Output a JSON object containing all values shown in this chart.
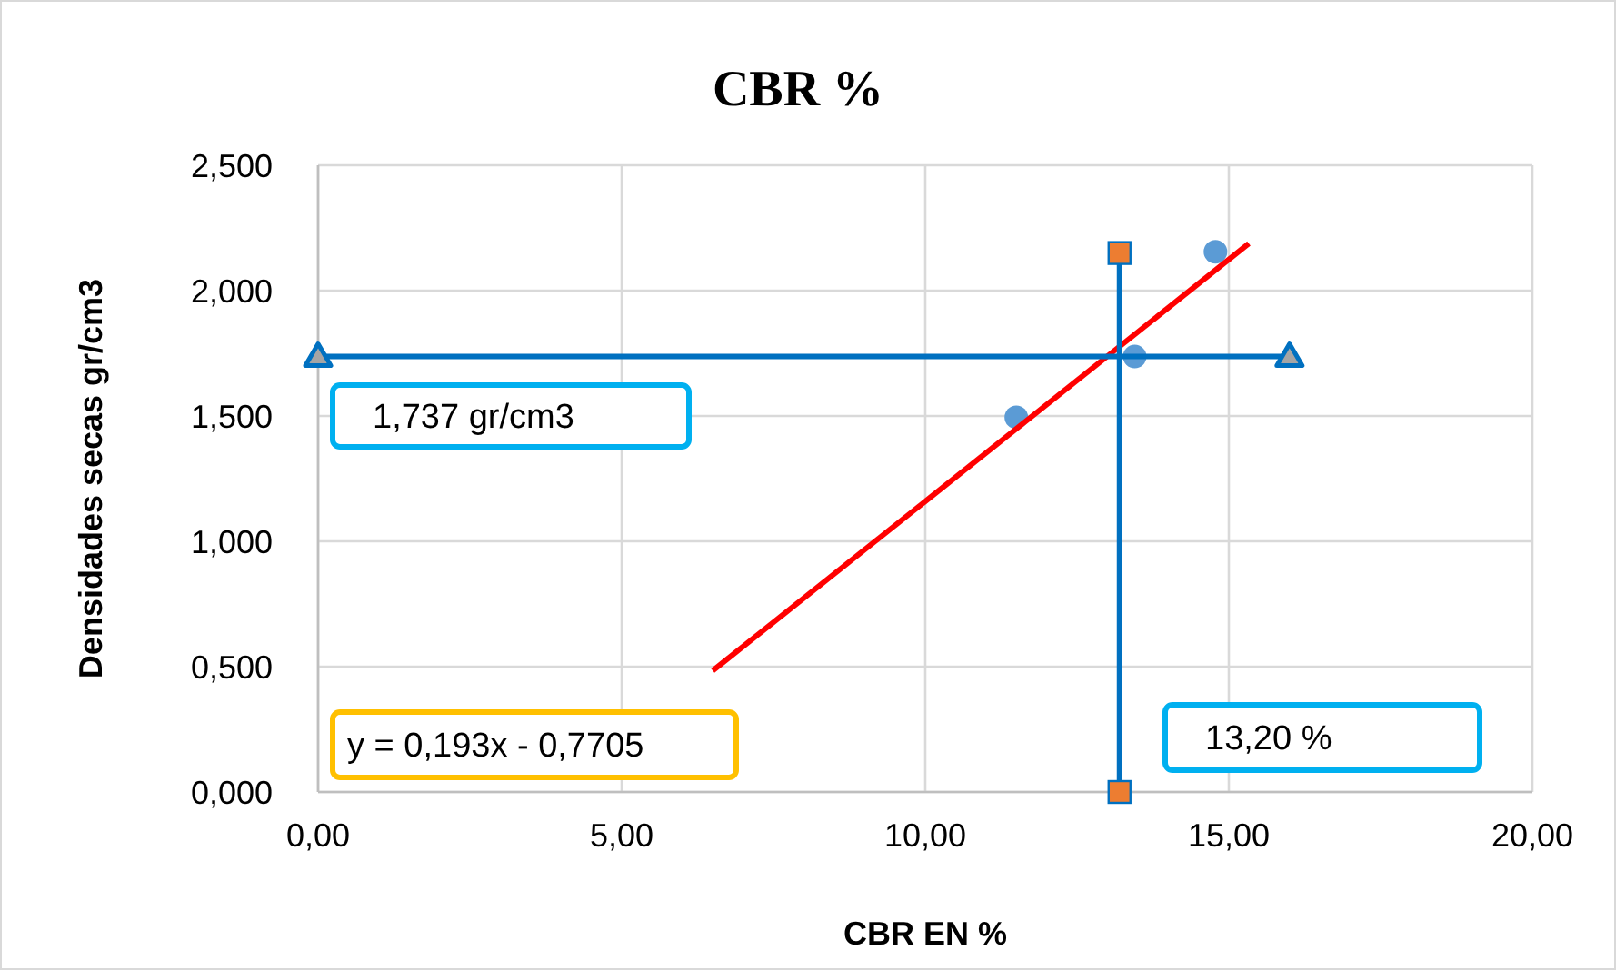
{
  "chart_data": {
    "type": "scatter",
    "title": "CBR %",
    "xlabel": "CBR EN %",
    "ylabel": "Densidades secas gr/cm3",
    "xlim": [
      0,
      20
    ],
    "ylim": [
      0,
      2.5
    ],
    "xticks": [
      {
        "value": 0,
        "label": "0,00"
      },
      {
        "value": 5,
        "label": "5,00"
      },
      {
        "value": 10,
        "label": "10,00"
      },
      {
        "value": 15,
        "label": "15,00"
      },
      {
        "value": 20,
        "label": "20,00"
      }
    ],
    "yticks": [
      {
        "value": 0,
        "label": "0,000"
      },
      {
        "value": 0.5,
        "label": "0,500"
      },
      {
        "value": 1,
        "label": "1,000"
      },
      {
        "value": 1.5,
        "label": "1,500"
      },
      {
        "value": 2,
        "label": "2,000"
      },
      {
        "value": 2.5,
        "label": "2,500"
      }
    ],
    "grid": true,
    "series": [
      {
        "marker": "circle",
        "color": "#5b9bd5",
        "x": [
          11.5,
          13.45,
          14.78
        ],
        "values": [
          1.495,
          1.737,
          2.155
        ]
      },
      {
        "type": "line",
        "marker": "none",
        "color": "#ff0000",
        "x": [
          6.5,
          15.33
        ],
        "values": [
          0.484,
          2.188
        ]
      },
      {
        "type": "line",
        "marker": "triangle",
        "color": "#0070c0",
        "colors": [
          "#a5a5a5",
          "#a5a5a5"
        ],
        "x": [
          0,
          16
        ],
        "values": [
          1.737,
          1.737
        ]
      },
      {
        "type": "line",
        "marker": "square",
        "color": "#0070c0",
        "colors": [
          "#ed7d31",
          "#ed7d31"
        ],
        "x": [
          13.2,
          13.2
        ],
        "values": [
          0,
          2.15
        ]
      }
    ],
    "annotations": [
      "1,737 gr/cm3",
      "y = 0,193x - 0,7705",
      "13,20 %"
    ]
  }
}
